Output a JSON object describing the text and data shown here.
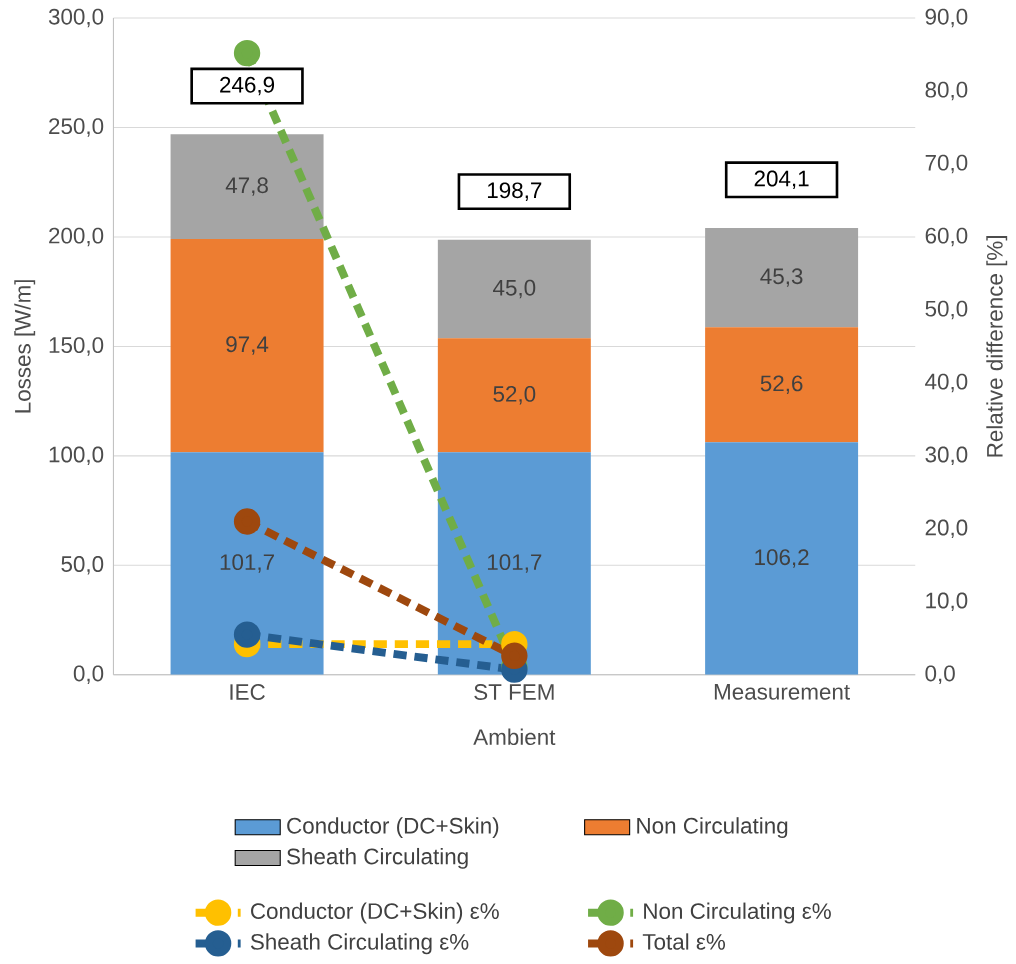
{
  "chart_data": {
    "type": "bar",
    "stacked": true,
    "xlabel": "Ambient",
    "ylabel": "Losses [W/m]",
    "y2label": "Relative difference [%]",
    "categories": [
      "IEC",
      "ST FEM",
      "Measurement"
    ],
    "series": [
      {
        "name": "Conductor (DC+Skin)",
        "color": "#5b9bd5",
        "values": [
          101.7,
          101.7,
          106.2
        ],
        "value_labels": [
          "101,7",
          "101,7",
          "106,2"
        ]
      },
      {
        "name": "Non Circulating",
        "color": "#ed7d31",
        "values": [
          97.4,
          52.0,
          52.6
        ],
        "value_labels": [
          "97,4",
          "52,0",
          "52,6"
        ]
      },
      {
        "name": "Sheath Circulating",
        "color": "#a5a5a5",
        "values": [
          47.8,
          45.0,
          45.3
        ],
        "value_labels": [
          "47,8",
          "45,0",
          "45,3"
        ]
      },
      {
        "name": "Conductor (DC+Skin) ε%",
        "type": "line",
        "axis": "y2",
        "color": "#ffc000",
        "values": [
          4.2,
          4.2,
          null
        ]
      },
      {
        "name": "Non Circulating ε%",
        "type": "line",
        "axis": "y2",
        "color": "#70ad47",
        "values": [
          85.2,
          1.1,
          null
        ]
      },
      {
        "name": "Sheath Circulating ε%",
        "type": "line",
        "axis": "y2",
        "color": "#255e91",
        "values": [
          5.5,
          0.7,
          null
        ]
      },
      {
        "name": "Total ε%",
        "type": "line",
        "axis": "y2",
        "color": "#9e480e",
        "values": [
          21.0,
          2.6,
          null
        ]
      }
    ],
    "totals": [
      "246,9",
      "198,7",
      "204,1"
    ],
    "ylim": [
      0,
      300
    ],
    "yticks": [
      {
        "value": 0,
        "label": "0,0"
      },
      {
        "value": 50,
        "label": "50,0"
      },
      {
        "value": 100,
        "label": "100,0"
      },
      {
        "value": 150,
        "label": "150,0"
      },
      {
        "value": 200,
        "label": "200,0"
      },
      {
        "value": 250,
        "label": "250,0"
      },
      {
        "value": 300,
        "label": "300,0"
      }
    ],
    "y2lim": [
      0,
      90
    ],
    "y2ticks": [
      {
        "value": 0,
        "label": "0,0"
      },
      {
        "value": 10,
        "label": "10,0"
      },
      {
        "value": 20,
        "label": "20,0"
      },
      {
        "value": 30,
        "label": "30,0"
      },
      {
        "value": 40,
        "label": "40,0"
      },
      {
        "value": 50,
        "label": "50,0"
      },
      {
        "value": 60,
        "label": "60,0"
      },
      {
        "value": 70,
        "label": "70,0"
      },
      {
        "value": 80,
        "label": "80,0"
      },
      {
        "value": 90,
        "label": "90,0"
      }
    ],
    "grid": "y",
    "legend": "bottom",
    "marker": "circle",
    "line_style": "dashed"
  }
}
